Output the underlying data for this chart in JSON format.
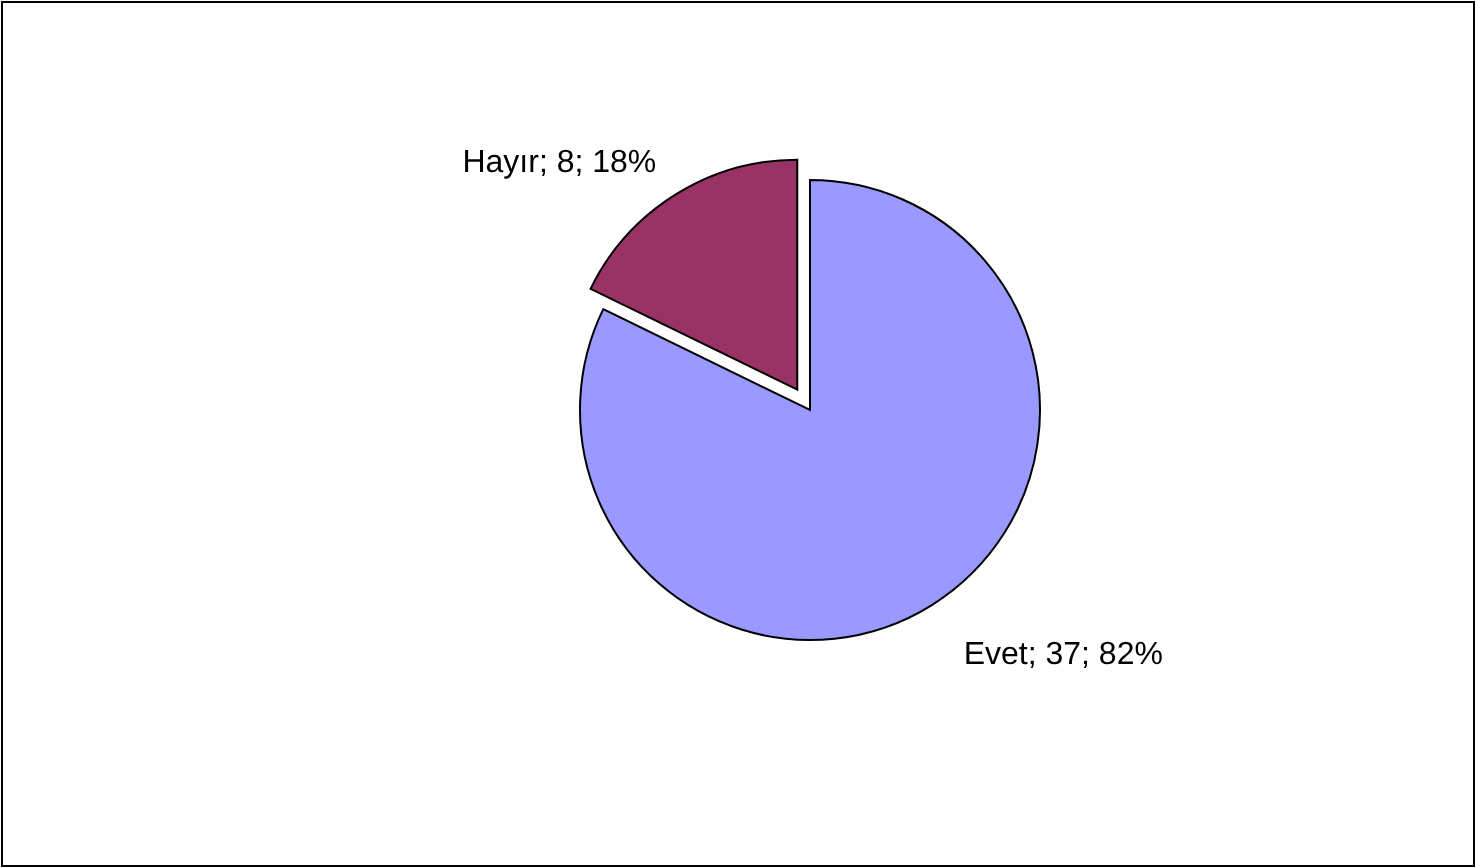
{
  "chart_data": {
    "type": "pie",
    "categories": [
      "Evet",
      "Hayır"
    ],
    "values": [
      37,
      8
    ],
    "colors": [
      "#9999ff",
      "#993366"
    ],
    "value_labels": [
      "; 37; 82%",
      "; 8; 18%"
    ],
    "legend": false
  }
}
